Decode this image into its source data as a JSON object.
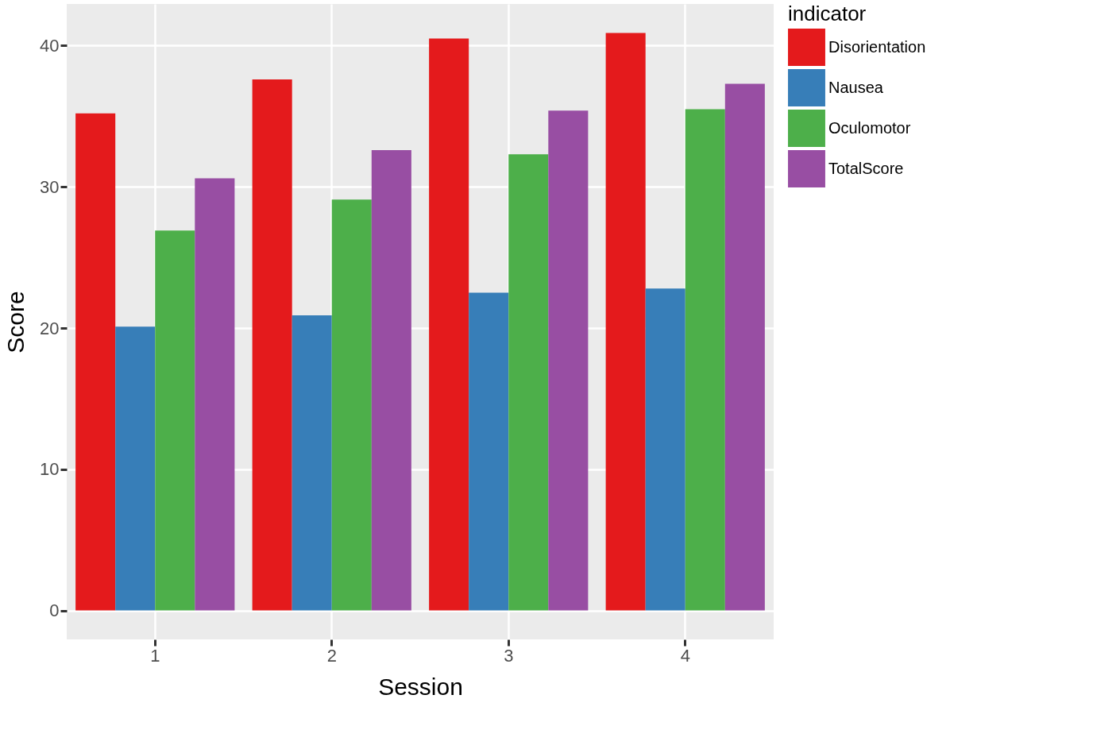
{
  "chart_data": {
    "type": "bar",
    "xlabel": "Session",
    "ylabel": "Score",
    "legend_title": "indicator",
    "categories": [
      "1",
      "2",
      "3",
      "4"
    ],
    "series": [
      {
        "name": "Disorientation",
        "color": "#e41a1c",
        "values": [
          35.2,
          37.6,
          40.5,
          40.9
        ]
      },
      {
        "name": "Nausea",
        "color": "#377eb8",
        "values": [
          20.1,
          20.9,
          22.5,
          22.8
        ]
      },
      {
        "name": "Oculomotor",
        "color": "#4daf4a",
        "values": [
          26.9,
          29.1,
          32.3,
          35.5
        ]
      },
      {
        "name": "TotalScore",
        "color": "#984ea3",
        "values": [
          30.6,
          32.6,
          35.4,
          37.3
        ]
      }
    ],
    "ylim": [
      -2.05,
      42.95
    ],
    "yticks": [
      0,
      10,
      20,
      30,
      40
    ],
    "grid": true,
    "legend": "right"
  }
}
